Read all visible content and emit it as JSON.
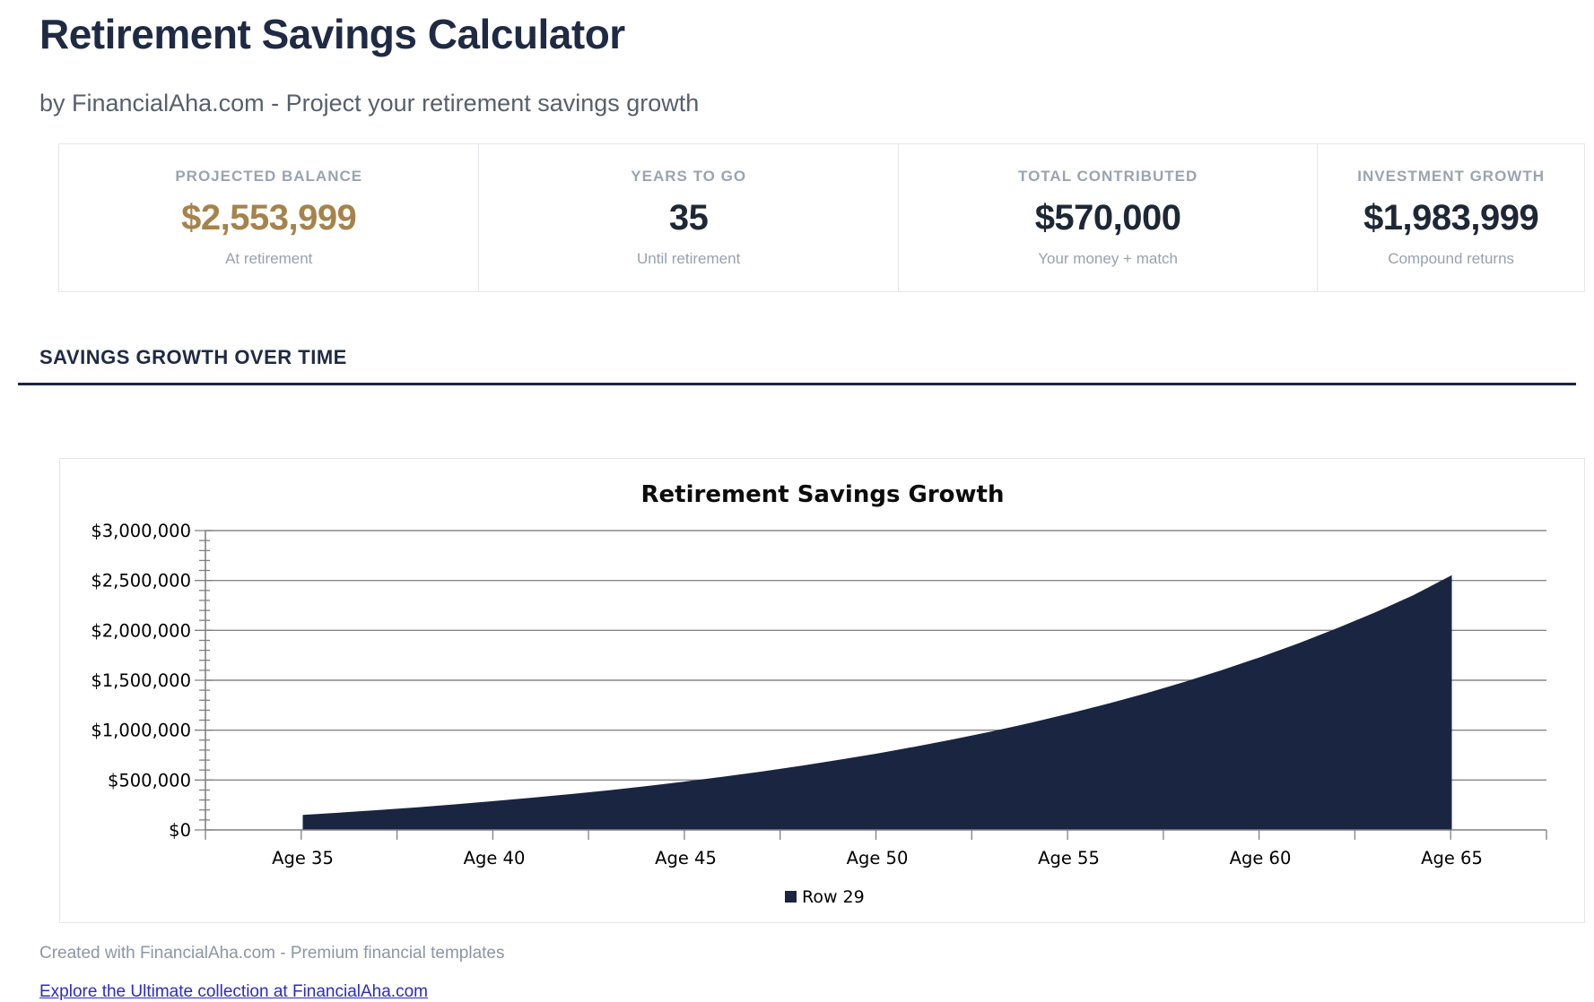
{
  "page": {
    "title": "Retirement Savings Calculator",
    "subtitle": "by FinancialAha.com - Project your retirement savings growth",
    "section_heading": "SAVINGS GROWTH OVER TIME",
    "footer_note": "Created with FinancialAha.com - Premium financial templates",
    "footer_link": "Explore the Ultimate collection at FinancialAha.com"
  },
  "stats": [
    {
      "label": "PROJECTED BALANCE",
      "value": "$2,553,999",
      "sub": "At retirement",
      "value_color": "#a5834b"
    },
    {
      "label": "YEARS TO GO",
      "value": "35",
      "sub": "Until retirement",
      "value_color": "#1e2735"
    },
    {
      "label": "TOTAL CONTRIBUTED",
      "value": "$570,000",
      "sub": "Your money + match",
      "value_color": "#1e2735"
    },
    {
      "label": "INVESTMENT GROWTH",
      "value": "$1,983,999",
      "sub": "Compound returns",
      "value_color": "#1e2735"
    }
  ],
  "chart_data": {
    "type": "area",
    "title": "Retirement Savings Growth",
    "x": [
      35,
      36,
      37,
      38,
      39,
      40,
      41,
      42,
      43,
      44,
      45,
      46,
      47,
      48,
      49,
      50,
      51,
      52,
      53,
      54,
      55,
      56,
      57,
      58,
      59,
      60,
      61,
      62,
      63,
      64,
      65
    ],
    "series": [
      {
        "name": "Row 29",
        "values": [
          150000,
          174000,
          200000,
          227000,
          257000,
          289000,
          323000,
          359000,
          398000,
          440000,
          486000,
          534000,
          586000,
          642000,
          702000,
          766000,
          835000,
          909000,
          988000,
          1073000,
          1165000,
          1263000,
          1368000,
          1481000,
          1602000,
          1732000,
          1871000,
          2021000,
          2181000,
          2353000,
          2553999
        ]
      }
    ],
    "x_ticks": [
      35,
      40,
      45,
      50,
      55,
      60,
      65
    ],
    "x_tick_labels": [
      "Age 35",
      "Age 40",
      "Age 45",
      "Age 50",
      "Age 55",
      "Age 60",
      "Age 65"
    ],
    "y_ticks": [
      0,
      500000,
      1000000,
      1500000,
      2000000,
      2500000,
      3000000
    ],
    "y_tick_labels": [
      "$0",
      "$500,000",
      "$1,000,000",
      "$1,500,000",
      "$2,000,000",
      "$2,500,000",
      "$3,000,000"
    ],
    "y_minor_step": 100000,
    "ylim": [
      0,
      3000000
    ],
    "grid": "horizontal",
    "legend": [
      {
        "label": "Row 29",
        "color": "#1a2542"
      }
    ],
    "legend_position": "bottom",
    "area_color": "#1a2542",
    "axis_color": "#808080",
    "gridline_color": "#878787"
  }
}
